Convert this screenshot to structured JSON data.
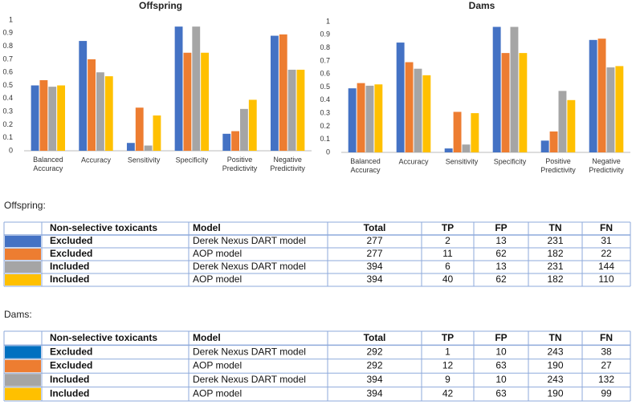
{
  "chart_data": [
    {
      "type": "bar",
      "title": "Offspring",
      "categories": [
        "Balanced Accuracy",
        "Accuracy",
        "Sensitivity",
        "Specificity",
        "Positive Predictivity",
        "Negative Predictivity"
      ],
      "series": [
        {
          "color": "#4472c4",
          "values": [
            0.5,
            0.84,
            0.06,
            0.95,
            0.13,
            0.88
          ]
        },
        {
          "color": "#ed7d31",
          "values": [
            0.54,
            0.7,
            0.33,
            0.75,
            0.15,
            0.89
          ]
        },
        {
          "color": "#a5a5a5",
          "values": [
            0.49,
            0.6,
            0.04,
            0.95,
            0.32,
            0.62
          ]
        },
        {
          "color": "#ffc000",
          "values": [
            0.5,
            0.57,
            0.27,
            0.75,
            0.39,
            0.62
          ]
        }
      ],
      "ylim": [
        0,
        1
      ],
      "yticks": [
        0,
        0.1,
        0.2,
        0.3,
        0.4,
        0.5,
        0.6,
        0.7,
        0.8,
        0.9,
        1
      ],
      "grid": false
    },
    {
      "type": "bar",
      "title": "Dams",
      "categories": [
        "Balanced Accuracy",
        "Accuracy",
        "Sensitivity",
        "Specificity",
        "Positive Predictivity",
        "Negative Predictivity"
      ],
      "series": [
        {
          "color": "#4472c4",
          "values": [
            0.49,
            0.84,
            0.03,
            0.96,
            0.09,
            0.86
          ]
        },
        {
          "color": "#ed7d31",
          "values": [
            0.53,
            0.69,
            0.31,
            0.76,
            0.16,
            0.87
          ]
        },
        {
          "color": "#a5a5a5",
          "values": [
            0.51,
            0.64,
            0.06,
            0.96,
            0.47,
            0.65
          ]
        },
        {
          "color": "#ffc000",
          "values": [
            0.52,
            0.59,
            0.3,
            0.76,
            0.4,
            0.66
          ]
        }
      ],
      "ylim": [
        0,
        1
      ],
      "yticks": [
        0,
        0.1,
        0.2,
        0.3,
        0.4,
        0.5,
        0.6,
        0.7,
        0.8,
        0.9,
        1
      ],
      "grid": false
    }
  ],
  "tables": [
    {
      "heading": "Offspring:",
      "header": [
        "Non-selective toxicants",
        "Model",
        "Total",
        "TP",
        "FP",
        "TN",
        "FN"
      ],
      "colors": [
        "#4472c4",
        "#ed7d31",
        "#a5a5a5",
        "#ffc000"
      ],
      "rows": [
        [
          "Excluded",
          "Derek Nexus DART model",
          277,
          2,
          13,
          231,
          31
        ],
        [
          "Excluded",
          "AOP model",
          277,
          11,
          62,
          182,
          22
        ],
        [
          "Included",
          "Derek Nexus DART model",
          394,
          6,
          13,
          231,
          144
        ],
        [
          "Included",
          "AOP model",
          394,
          40,
          62,
          182,
          110
        ]
      ]
    },
    {
      "heading": "Dams:",
      "header": [
        "Non-selective toxicants",
        "Model",
        "Total",
        "TP",
        "FP",
        "TN",
        "FN"
      ],
      "colors": [
        "#0070c0",
        "#ed7d31",
        "#a5a5a5",
        "#ffc000"
      ],
      "rows": [
        [
          "Excluded",
          "Derek Nexus DART model",
          292,
          1,
          10,
          243,
          38
        ],
        [
          "Excluded",
          "AOP model",
          292,
          12,
          63,
          190,
          27
        ],
        [
          "Included",
          "Derek Nexus DART model",
          394,
          9,
          10,
          243,
          132
        ],
        [
          "Included",
          "AOP model",
          394,
          42,
          63,
          190,
          99
        ]
      ]
    }
  ]
}
